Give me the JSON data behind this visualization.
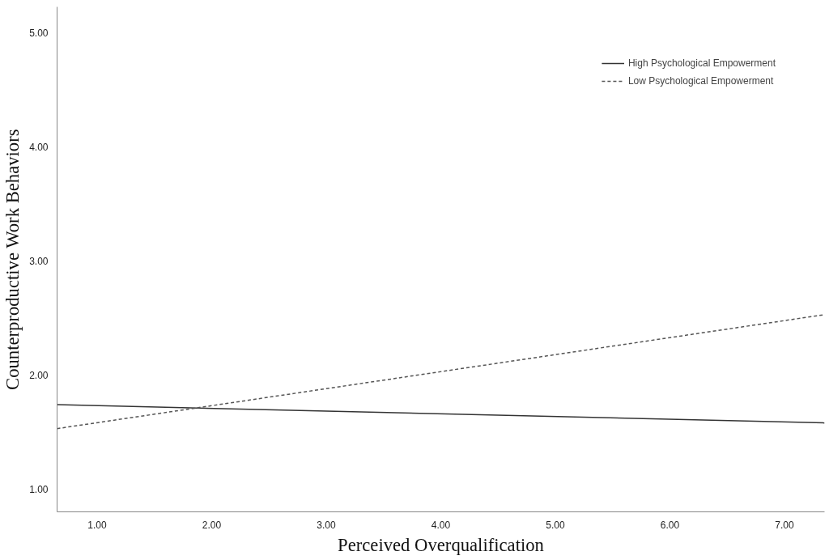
{
  "chart_data": {
    "type": "line",
    "xlabel": "Perceived Overqualification",
    "ylabel": "Counterproductive Work Behaviors",
    "x": [
      0.65,
      7.35
    ],
    "series": [
      {
        "name": "High Psychological Empowerment",
        "color": "#333333",
        "values": [
          1.74,
          1.58
        ],
        "line_style": "solid"
      },
      {
        "name": "Low Psychological Empowerment",
        "color": "#555555",
        "values": [
          1.53,
          2.53
        ],
        "line_style": "dashed"
      }
    ],
    "xlim": [
      0.65,
      7.35
    ],
    "ylim": [
      0.8,
      5.23
    ],
    "xticks": [
      {
        "value": 1,
        "label": "1.00"
      },
      {
        "value": 2,
        "label": "2.00"
      },
      {
        "value": 3,
        "label": "3.00"
      },
      {
        "value": 4,
        "label": "4.00"
      },
      {
        "value": 5,
        "label": "5.00"
      },
      {
        "value": 6,
        "label": "6.00"
      },
      {
        "value": 7,
        "label": "7.00"
      }
    ],
    "yticks": [
      {
        "value": 1,
        "label": "1.00"
      },
      {
        "value": 2,
        "label": "2.00"
      },
      {
        "value": 3,
        "label": "3.00"
      },
      {
        "value": 4,
        "label": "4.00"
      },
      {
        "value": 5,
        "label": "5.00"
      }
    ],
    "grid": false,
    "legend": "top right",
    "marker": "none"
  }
}
